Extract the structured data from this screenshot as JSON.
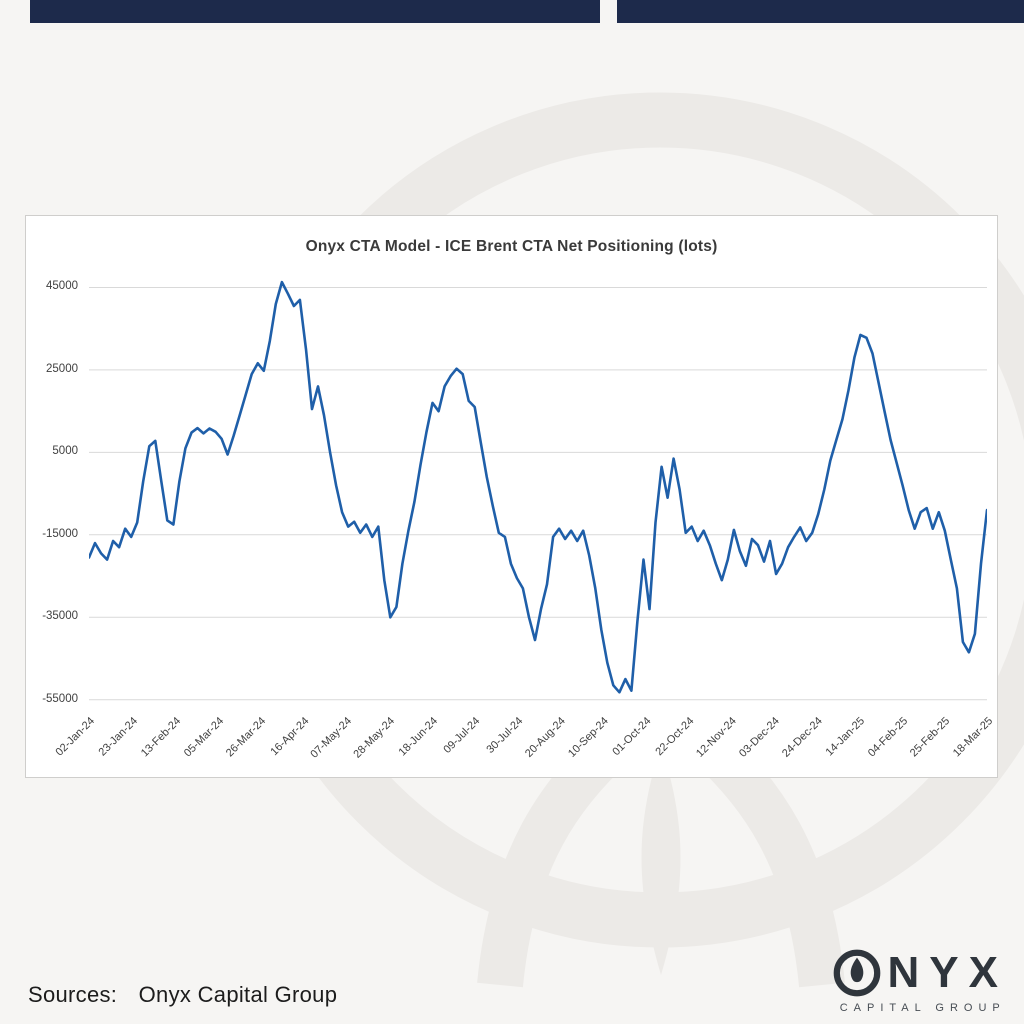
{
  "page": {
    "background_color": "#f6f5f3",
    "top_bar_color": "#1d2a4b"
  },
  "chart_data": {
    "type": "line",
    "title": "Onyx CTA Model - ICE Brent CTA Net Positioning (lots)",
    "xlabel": "",
    "ylabel": "",
    "grid": "horizontal",
    "legend": "none",
    "ylim": [
      -57000,
      49000
    ],
    "yticks": [
      45000,
      25000,
      5000,
      -15000,
      -35000,
      -55000
    ],
    "x_tick_labels": [
      "02-Jan-24",
      "23-Jan-24",
      "13-Feb-24",
      "05-Mar-24",
      "26-Mar-24",
      "16-Apr-24",
      "07-May-24",
      "28-May-24",
      "18-Jun-24",
      "09-Jul-24",
      "30-Jul-24",
      "20-Aug-24",
      "10-Sep-24",
      "01-Oct-24",
      "22-Oct-24",
      "12-Nov-24",
      "03-Dec-24",
      "24-Dec-24",
      "14-Jan-25",
      "04-Feb-25",
      "25-Feb-25",
      "18-Mar-25"
    ],
    "series": [
      {
        "name": "ICE Brent CTA Net Positioning (lots)",
        "color": "#1f5fa9",
        "values": [
          -20500,
          -17000,
          -19500,
          -21000,
          -16500,
          -18000,
          -13500,
          -15500,
          -12000,
          -2000,
          6500,
          7800,
          -2000,
          -11500,
          -12500,
          -2000,
          6000,
          9800,
          10900,
          9600,
          10800,
          10000,
          8300,
          4500,
          9000,
          14000,
          19000,
          24000,
          26600,
          24800,
          32000,
          41000,
          46300,
          43500,
          40500,
          42000,
          30000,
          15500,
          21000,
          14000,
          5000,
          -3000,
          -9500,
          -13000,
          -11800,
          -14500,
          -12500,
          -15500,
          -13000,
          -26000,
          -35000,
          -32500,
          -22000,
          -14000,
          -7000,
          2000,
          10000,
          17000,
          15000,
          21000,
          23500,
          25300,
          24000,
          17500,
          16000,
          7500,
          -1000,
          -8000,
          -14500,
          -15500,
          -22000,
          -25500,
          -28000,
          -35000,
          -40500,
          -33000,
          -27000,
          -15500,
          -13500,
          -16000,
          -14000,
          -16500,
          -14000,
          -20000,
          -28000,
          -38000,
          -46000,
          -51500,
          -53200,
          -50000,
          -52800,
          -36000,
          -21000,
          -33000,
          -12000,
          1500,
          -6000,
          3500,
          -4000,
          -14500,
          -13000,
          -16500,
          -14000,
          -17500,
          -22000,
          -26000,
          -21000,
          -13800,
          -19000,
          -22500,
          -16000,
          -17500,
          -21500,
          -16500,
          -24500,
          -22000,
          -18000,
          -15500,
          -13200,
          -16500,
          -14500,
          -10000,
          -4000,
          3000,
          8000,
          13000,
          20000,
          28000,
          33500,
          32800,
          29000,
          22000,
          15000,
          8000,
          2500,
          -3000,
          -9000,
          -13500,
          -9500,
          -8500,
          -13500,
          -9500,
          -14000,
          -21000,
          -28000,
          -41000,
          -43500,
          -39000,
          -22000,
          -9000
        ]
      }
    ]
  },
  "footer": {
    "sources_label": "Sources:",
    "sources_value": "Onyx Capital Group"
  },
  "logo": {
    "brand": "ONYX",
    "brand_rest": "NYX",
    "subtitle": "CAPITAL GROUP",
    "color": "#2f353c"
  }
}
